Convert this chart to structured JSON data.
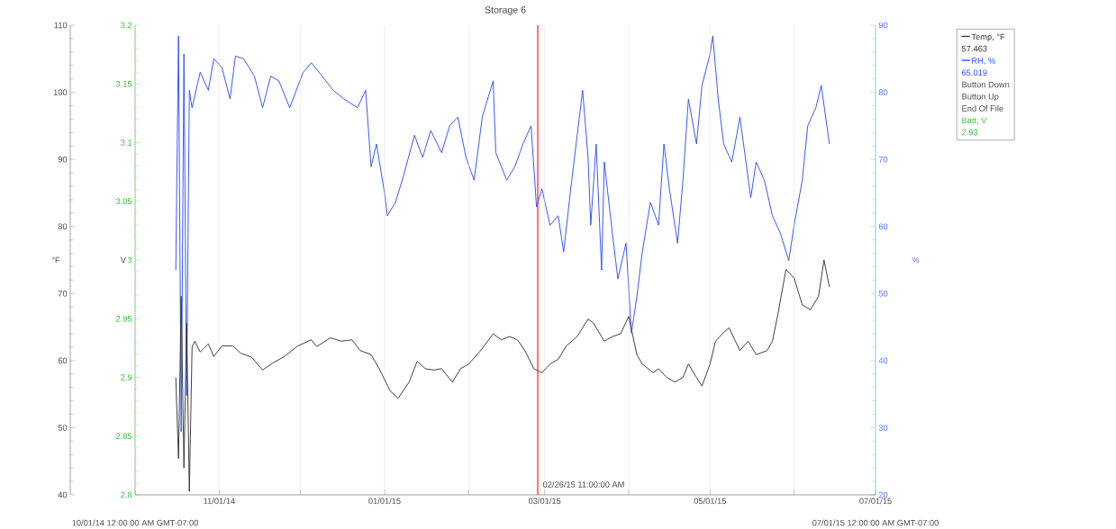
{
  "chart_data": {
    "type": "line",
    "title": "Storage 6",
    "xlim": [
      "2014-10-01",
      "2015-07-01"
    ],
    "xticks": [
      {
        "value": "2014-10-01",
        "label": null
      },
      {
        "value": "2014-11-01",
        "label": "11/01/14"
      },
      {
        "value": "2014-12-01",
        "label": null
      },
      {
        "value": "2015-01-01",
        "label": "01/01/15"
      },
      {
        "value": "2015-02-01",
        "label": null
      },
      {
        "value": "2015-03-01",
        "label": "03/01/15"
      },
      {
        "value": "2015-04-01",
        "label": null
      },
      {
        "value": "2015-05-01",
        "label": "05/01/15"
      },
      {
        "value": "2015-06-01",
        "label": null
      },
      {
        "value": "2015-07-01",
        "label": "07/01/15"
      }
    ],
    "ylabel": "°F",
    "ylim": [
      40,
      110
    ],
    "yticks": [
      40,
      50,
      60,
      70,
      80,
      90,
      100,
      110
    ],
    "y2label": "%",
    "y2lim": [
      20,
      90
    ],
    "y2ticks": [
      20,
      30,
      40,
      50,
      60,
      70,
      80,
      90
    ],
    "y3label": "V",
    "y3lim": [
      2.8,
      3.2
    ],
    "y3ticks": [
      2.8,
      2.85,
      2.9,
      2.95,
      3,
      3.05,
      3.1,
      3.15,
      3.2
    ],
    "grid": "x",
    "legend": "right",
    "marker": "none",
    "line_style": "solid",
    "series": [
      {
        "name": "Temp, °F",
        "color": "#333333",
        "x": [
          "2014-10-16",
          "2014-10-17",
          "2014-10-18",
          "2014-10-19",
          "2014-10-20",
          "2014-10-21",
          "2014-10-22",
          "2014-10-23",
          "2014-10-25",
          "2014-10-28",
          "2014-10-30",
          "2014-11-02",
          "2014-11-06",
          "2014-11-09",
          "2014-11-13",
          "2014-11-17",
          "2014-11-21",
          "2014-11-25",
          "2014-11-30",
          "2014-12-05",
          "2014-12-07",
          "2014-12-12",
          "2014-12-16",
          "2014-12-20",
          "2014-12-23",
          "2014-12-27",
          "2014-12-30",
          "2015-01-03",
          "2015-01-06",
          "2015-01-10",
          "2015-01-13",
          "2015-01-16",
          "2015-01-19",
          "2015-01-22",
          "2015-01-26",
          "2015-01-29",
          "2015-02-01",
          "2015-02-05",
          "2015-02-08",
          "2015-02-10",
          "2015-02-13",
          "2015-02-16",
          "2015-02-19",
          "2015-02-22",
          "2015-02-25",
          "2015-02-28",
          "2015-03-03",
          "2015-03-06",
          "2015-03-09",
          "2015-03-13",
          "2015-03-17",
          "2015-03-19",
          "2015-03-23",
          "2015-03-26",
          "2015-03-29",
          "2015-04-01",
          "2015-04-04",
          "2015-04-06",
          "2015-04-10",
          "2015-04-12",
          "2015-04-15",
          "2015-04-18",
          "2015-04-21",
          "2015-04-23",
          "2015-04-26",
          "2015-04-28",
          "2015-05-01",
          "2015-05-03",
          "2015-05-06",
          "2015-05-08",
          "2015-05-12",
          "2015-05-15",
          "2015-05-18",
          "2015-05-22",
          "2015-05-24",
          "2015-05-26",
          "2015-05-29",
          "2015-06-01",
          "2015-06-04",
          "2015-06-07",
          "2015-06-10",
          "2015-06-12",
          "2015-06-14"
        ],
        "values": [
          57.5,
          45.4,
          69.6,
          44.0,
          65.6,
          40.5,
          62.0,
          62.9,
          61.3,
          62.5,
          60.6,
          62.2,
          62.2,
          61.1,
          60.5,
          58.6,
          59.7,
          60.6,
          62.2,
          63.1,
          62.1,
          63.4,
          62.9,
          63.1,
          61.5,
          60.9,
          58.8,
          55.5,
          54.4,
          56.8,
          59.9,
          58.8,
          58.6,
          58.8,
          56.8,
          58.8,
          59.5,
          61.3,
          62.9,
          64.0,
          63.1,
          63.6,
          63.1,
          61.3,
          58.8,
          58.2,
          59.5,
          60.2,
          62.2,
          63.6,
          66.2,
          65.6,
          62.9,
          63.6,
          64.0,
          66.6,
          60.9,
          59.5,
          58.2,
          58.8,
          57.5,
          56.8,
          57.5,
          59.5,
          57.5,
          56.2,
          59.5,
          62.9,
          64.2,
          64.9,
          61.5,
          62.9,
          60.9,
          61.5,
          62.9,
          66.9,
          73.6,
          72.3,
          68.3,
          67.6,
          69.6,
          75.0,
          71.0
        ]
      },
      {
        "name": "RH, %",
        "color": "#2a4cff",
        "axis": "y2",
        "x": [
          "2014-10-16",
          "2014-10-17",
          "2014-10-18",
          "2014-10-19",
          "2014-10-20",
          "2014-10-21",
          "2014-10-22",
          "2014-10-25",
          "2014-10-28",
          "2014-10-30",
          "2014-11-02",
          "2014-11-05",
          "2014-11-07",
          "2014-11-10",
          "2014-11-14",
          "2014-11-17",
          "2014-11-20",
          "2014-11-23",
          "2014-11-27",
          "2014-12-02",
          "2014-12-05",
          "2014-12-09",
          "2014-12-13",
          "2014-12-17",
          "2014-12-22",
          "2014-12-25",
          "2014-12-27",
          "2014-12-29",
          "2015-01-01",
          "2015-01-02",
          "2015-01-05",
          "2015-01-08",
          "2015-01-12",
          "2015-01-15",
          "2015-01-18",
          "2015-01-22",
          "2015-01-25",
          "2015-01-28",
          "2015-01-31",
          "2015-02-03",
          "2015-02-06",
          "2015-02-10",
          "2015-02-11",
          "2015-02-15",
          "2015-02-18",
          "2015-02-21",
          "2015-02-24",
          "2015-02-26",
          "2015-02-28",
          "2015-03-03",
          "2015-03-06",
          "2015-03-08",
          "2015-03-11",
          "2015-03-13",
          "2015-03-15",
          "2015-03-17",
          "2015-03-18",
          "2015-03-20",
          "2015-03-22",
          "2015-03-23",
          "2015-03-26",
          "2015-03-28",
          "2015-03-31",
          "2015-04-02",
          "2015-04-04",
          "2015-04-06",
          "2015-04-09",
          "2015-04-12",
          "2015-04-14",
          "2015-04-16",
          "2015-04-19",
          "2015-04-21",
          "2015-04-23",
          "2015-04-26",
          "2015-04-28",
          "2015-05-01",
          "2015-05-02",
          "2015-05-04",
          "2015-05-06",
          "2015-05-09",
          "2015-05-12",
          "2015-05-16",
          "2015-05-18",
          "2015-05-21",
          "2015-05-24",
          "2015-05-27",
          "2015-05-30",
          "2015-06-01",
          "2015-06-04",
          "2015-06-06",
          "2015-06-09",
          "2015-06-11",
          "2015-06-14"
        ],
        "values": [
          53.5,
          88.4,
          29.4,
          85.7,
          34.8,
          80.3,
          77.7,
          83.0,
          80.3,
          85.0,
          83.7,
          79.0,
          85.4,
          85.0,
          82.4,
          77.7,
          82.4,
          81.7,
          77.7,
          83.0,
          84.4,
          82.4,
          80.3,
          79.0,
          77.7,
          80.3,
          68.9,
          72.3,
          64.9,
          61.6,
          63.6,
          67.6,
          73.6,
          70.3,
          74.3,
          71.0,
          75.0,
          76.3,
          70.3,
          66.9,
          76.3,
          81.7,
          71.0,
          66.9,
          68.9,
          72.3,
          75.0,
          62.9,
          65.6,
          60.2,
          61.6,
          56.2,
          66.9,
          73.6,
          80.3,
          70.3,
          60.2,
          72.3,
          53.5,
          69.6,
          58.9,
          52.2,
          57.5,
          44.1,
          49.5,
          56.2,
          63.6,
          60.2,
          72.3,
          65.6,
          57.5,
          66.9,
          79.0,
          72.3,
          81.0,
          85.7,
          88.4,
          79.0,
          72.3,
          69.6,
          76.3,
          64.3,
          69.6,
          66.9,
          61.6,
          58.9,
          54.9,
          60.2,
          66.9,
          75.0,
          77.7,
          81.0,
          72.3
        ]
      }
    ],
    "ref_lines": [
      {
        "axis": "x",
        "value": "2015-02-26T11:00",
        "label": "02/26/15 11:00:00 AM",
        "color": "#ff3030"
      }
    ],
    "annotations": [
      "10/01/14 12:00:00 AM GMT-07:00",
      "07/01/15 12:00:00 AM GMT-07:00",
      "57.463",
      "65.019",
      "Button Down",
      "Button Up",
      "End Of File",
      "Batt, V",
      "2.93"
    ]
  }
}
